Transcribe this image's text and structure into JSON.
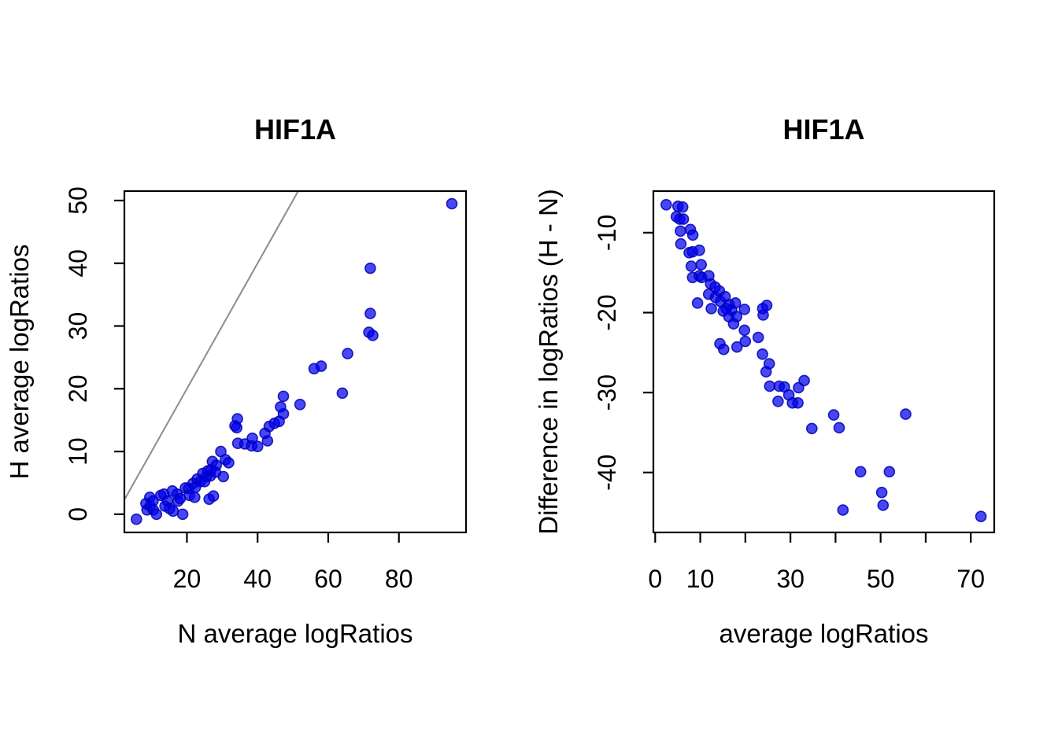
{
  "figure": {
    "background": "#ffffff",
    "point_color": "#0000EE",
    "point_alpha": 0.72,
    "axis_color": "#000000",
    "identity_line_color": "#8C8C8C"
  },
  "chart_data": [
    {
      "type": "scatter",
      "title": "HIF1A",
      "xlabel": "N average logRatios",
      "ylabel": "H average logRatios",
      "xlim": [
        2.3,
        99.0
      ],
      "ylim": [
        -2.9,
        51.5
      ],
      "xticks": [
        20,
        40,
        60,
        80
      ],
      "xtick_labels": [
        "20",
        "40",
        "60",
        "80"
      ],
      "yticks": [
        0,
        10,
        20,
        30,
        40,
        50
      ],
      "grid": false,
      "legend": null,
      "point_color": "#0000EE",
      "reference_line": {
        "intercept": 0,
        "slope": 1,
        "color": "#8C8C8C"
      },
      "points": [
        [
          5.7,
          -0.8
        ],
        [
          8.4,
          1.7
        ],
        [
          8.7,
          0.7
        ],
        [
          9.5,
          2.7
        ],
        [
          9.6,
          1.3
        ],
        [
          10.4,
          2.1
        ],
        [
          10.5,
          0.7
        ],
        [
          11.4,
          0.0
        ],
        [
          12.6,
          3.0
        ],
        [
          13.5,
          3.2
        ],
        [
          13.8,
          1.3
        ],
        [
          14.5,
          2.1
        ],
        [
          15.1,
          0.9
        ],
        [
          15.9,
          3.7
        ],
        [
          16.1,
          0.5
        ],
        [
          17.2,
          3.2
        ],
        [
          17.5,
          2.1
        ],
        [
          18.1,
          2.5
        ],
        [
          18.8,
          0.0
        ],
        [
          19.6,
          4.2
        ],
        [
          20.5,
          4.1
        ],
        [
          20.7,
          3.0
        ],
        [
          21.7,
          4.9
        ],
        [
          22.4,
          4.3
        ],
        [
          22.9,
          5.6
        ],
        [
          23.8,
          5.2
        ],
        [
          22.2,
          2.7
        ],
        [
          24.5,
          6.5
        ],
        [
          25.5,
          6.0
        ],
        [
          25.0,
          5.2
        ],
        [
          25.9,
          6.9
        ],
        [
          26.6,
          6.1
        ],
        [
          26.8,
          7.1
        ],
        [
          27.2,
          8.4
        ],
        [
          28.3,
          7.8
        ],
        [
          28.1,
          6.7
        ],
        [
          29.6,
          10.0
        ],
        [
          30.9,
          8.7
        ],
        [
          31.8,
          8.2
        ],
        [
          26.3,
          2.4
        ],
        [
          27.5,
          2.9
        ],
        [
          30.3,
          6.0
        ],
        [
          33.6,
          14.1
        ],
        [
          34.1,
          13.8
        ],
        [
          34.3,
          15.2
        ],
        [
          34.4,
          11.3
        ],
        [
          36.4,
          11.2
        ],
        [
          38.3,
          10.9
        ],
        [
          40.0,
          10.8
        ],
        [
          38.5,
          12.1
        ],
        [
          42.8,
          11.7
        ],
        [
          42.1,
          12.9
        ],
        [
          43.3,
          14.0
        ],
        [
          44.8,
          14.5
        ],
        [
          46.1,
          14.8
        ],
        [
          47.3,
          16.0
        ],
        [
          46.5,
          17.1
        ],
        [
          47.3,
          18.8
        ],
        [
          52.0,
          17.5
        ],
        [
          56.0,
          23.2
        ],
        [
          58.0,
          23.6
        ],
        [
          64.0,
          19.3
        ],
        [
          65.5,
          25.6
        ],
        [
          71.5,
          29.0
        ],
        [
          72.6,
          28.5
        ],
        [
          71.9,
          32.0
        ],
        [
          71.9,
          39.2
        ],
        [
          95.0,
          49.5
        ]
      ]
    },
    {
      "type": "scatter",
      "title": "HIF1A",
      "xlabel": "average logRatios",
      "ylabel": "Difference in logRatios (H - N)",
      "xlim": [
        -0.4,
        75.2
      ],
      "ylim": [
        -47.5,
        -4.8
      ],
      "xticks": [
        0,
        10,
        20,
        30,
        40,
        50,
        60,
        70
      ],
      "xtick_labels": [
        "0",
        "10",
        "",
        "30",
        "",
        "50",
        "",
        "70"
      ],
      "yticks": [
        -40,
        -30,
        -20,
        -10
      ],
      "grid": false,
      "legend": null,
      "point_color": "#0000EE",
      "reference_line": null,
      "points": [
        [
          2.45,
          -6.5
        ],
        [
          5.05,
          -6.7
        ],
        [
          4.7,
          -8.0
        ],
        [
          6.1,
          -6.8
        ],
        [
          5.45,
          -8.3
        ],
        [
          6.25,
          -8.3
        ],
        [
          5.6,
          -9.8
        ],
        [
          5.7,
          -11.4
        ],
        [
          7.8,
          -9.6
        ],
        [
          8.35,
          -10.3
        ],
        [
          7.55,
          -12.5
        ],
        [
          8.3,
          -12.4
        ],
        [
          8.0,
          -14.2
        ],
        [
          9.8,
          -12.2
        ],
        [
          8.3,
          -15.6
        ],
        [
          10.2,
          -14.0
        ],
        [
          9.8,
          -15.4
        ],
        [
          10.3,
          -15.6
        ],
        [
          9.4,
          -18.8
        ],
        [
          11.9,
          -15.4
        ],
        [
          12.3,
          -16.4
        ],
        [
          11.85,
          -17.7
        ],
        [
          13.3,
          -16.8
        ],
        [
          13.35,
          -18.1
        ],
        [
          14.25,
          -17.3
        ],
        [
          14.5,
          -18.6
        ],
        [
          12.45,
          -19.5
        ],
        [
          15.5,
          -18.0
        ],
        [
          15.75,
          -19.5
        ],
        [
          15.1,
          -19.8
        ],
        [
          16.4,
          -19.0
        ],
        [
          16.35,
          -20.5
        ],
        [
          16.95,
          -19.7
        ],
        [
          17.8,
          -18.8
        ],
        [
          18.05,
          -20.5
        ],
        [
          17.4,
          -21.4
        ],
        [
          19.8,
          -19.6
        ],
        [
          19.8,
          -22.2
        ],
        [
          20.0,
          -23.6
        ],
        [
          14.35,
          -23.9
        ],
        [
          15.2,
          -24.6
        ],
        [
          18.15,
          -24.3
        ],
        [
          23.85,
          -19.5
        ],
        [
          23.95,
          -20.3
        ],
        [
          24.75,
          -19.1
        ],
        [
          22.85,
          -23.1
        ],
        [
          23.8,
          -25.2
        ],
        [
          24.6,
          -27.4
        ],
        [
          25.4,
          -29.2
        ],
        [
          25.3,
          -26.4
        ],
        [
          27.25,
          -31.1
        ],
        [
          27.5,
          -29.2
        ],
        [
          28.65,
          -29.3
        ],
        [
          29.65,
          -30.3
        ],
        [
          30.45,
          -31.3
        ],
        [
          31.65,
          -31.3
        ],
        [
          31.8,
          -29.4
        ],
        [
          33.05,
          -28.5
        ],
        [
          34.75,
          -34.5
        ],
        [
          39.6,
          -32.8
        ],
        [
          40.8,
          -34.4
        ],
        [
          41.65,
          -44.7
        ],
        [
          45.55,
          -39.9
        ],
        [
          50.25,
          -42.5
        ],
        [
          50.55,
          -44.1
        ],
        [
          51.95,
          -39.9
        ],
        [
          55.55,
          -32.7
        ],
        [
          72.25,
          -45.5
        ]
      ]
    }
  ]
}
